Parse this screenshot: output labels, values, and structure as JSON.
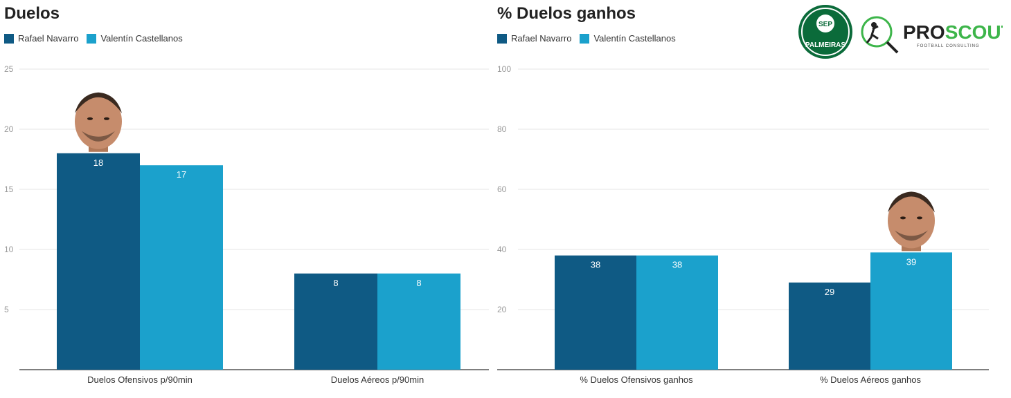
{
  "colors": {
    "navarro": "#0f5a84",
    "castellanos": "#1ba1cc",
    "grid": "#e4e4e4",
    "axis": "#333333",
    "tick": "#999999",
    "label": "#333333",
    "value_label": "#ffffff"
  },
  "logos": {
    "club_text": "PALMEIRAS",
    "brand_text": "PROSCOUT",
    "brand_subtext": "FOOTBALL CONSULTING"
  },
  "chart_data": [
    {
      "type": "bar",
      "title": "Duelos",
      "legend": [
        "Rafael Navarro",
        "Valentín Castellanos"
      ],
      "categories": [
        "Duelos Ofensivos p/90min",
        "Duelos Aéreos p/90min"
      ],
      "series": [
        {
          "name": "Rafael Navarro",
          "values": [
            18,
            8
          ]
        },
        {
          "name": "Valentín Castellanos",
          "values": [
            17,
            8
          ]
        }
      ],
      "ylim": [
        0,
        25
      ],
      "yticks": [
        5,
        10,
        15,
        20,
        25
      ],
      "grid": true,
      "legend_position": "top-left",
      "annotations": [
        "player-photo above Rafael Navarro bar (Duelos Ofensivos)"
      ]
    },
    {
      "type": "bar",
      "title": "% Duelos ganhos",
      "legend": [
        "Rafael Navarro",
        "Valentín Castellanos"
      ],
      "categories": [
        "% Duelos Ofensivos ganhos",
        "% Duelos Aéreos ganhos"
      ],
      "series": [
        {
          "name": "Rafael Navarro",
          "values": [
            38,
            29
          ]
        },
        {
          "name": "Valentín Castellanos",
          "values": [
            38,
            39
          ]
        }
      ],
      "ylim": [
        0,
        100
      ],
      "yticks": [
        20,
        40,
        60,
        80,
        100
      ],
      "grid": true,
      "legend_position": "top-left",
      "annotations": [
        "player-photo above Valentín Castellanos bar (% Duelos Aéreos ganhos)"
      ]
    }
  ]
}
